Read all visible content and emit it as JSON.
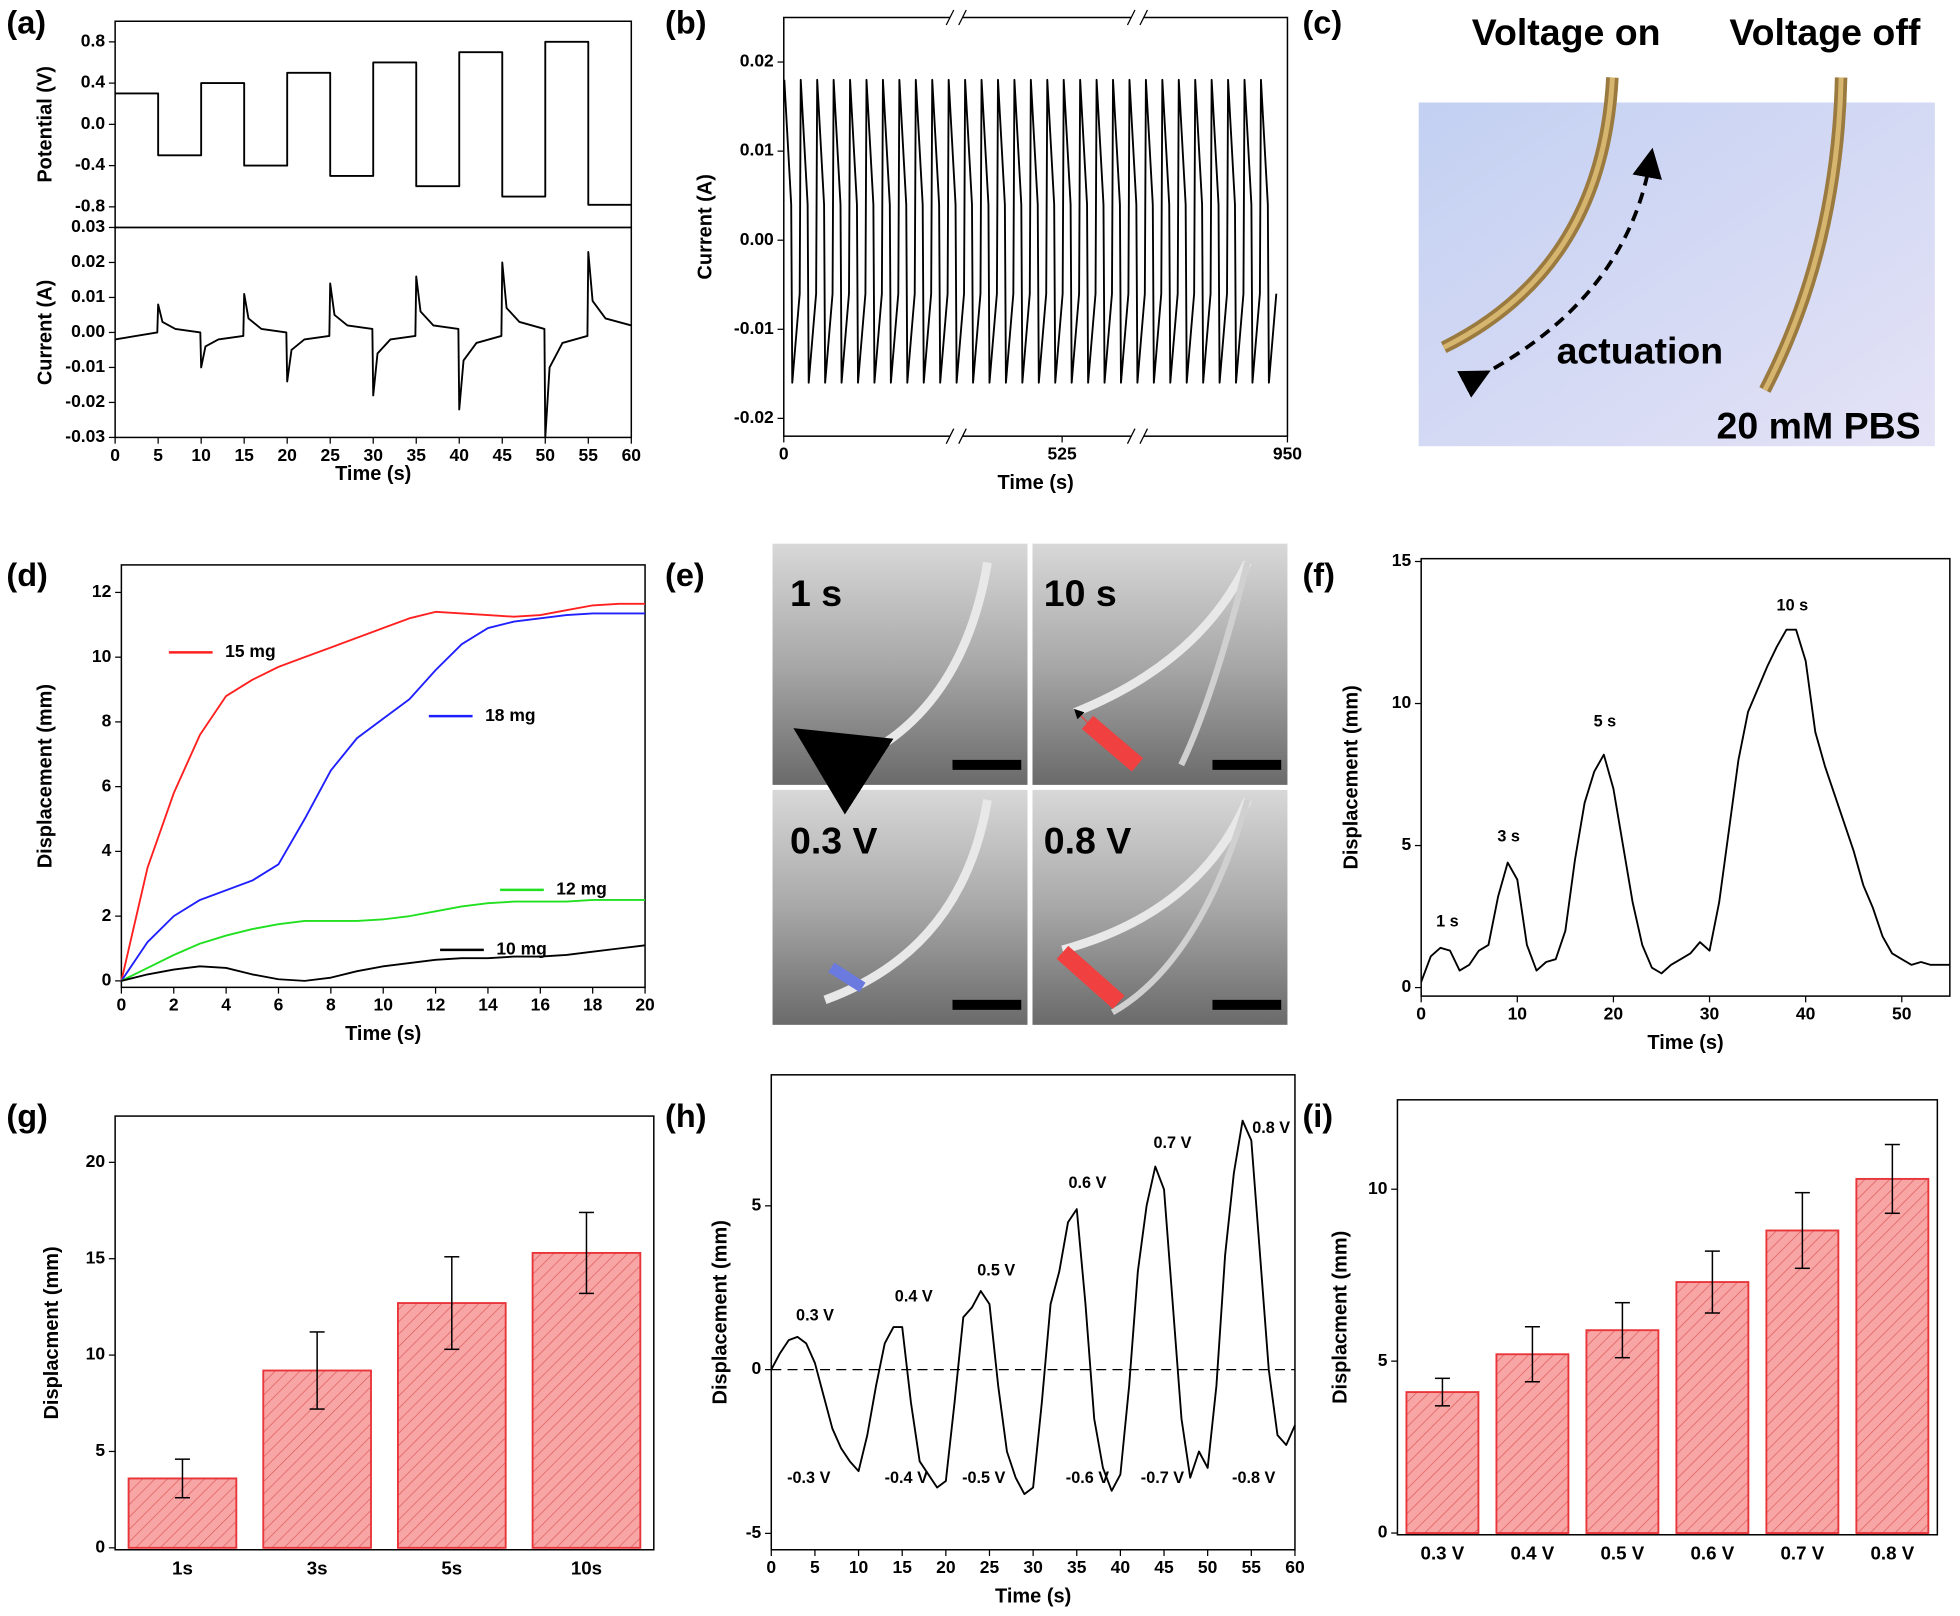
{
  "chart_data": [
    {
      "type": "line",
      "panel": "(a)",
      "ylabel": "Potential (V)",
      "x": [
        0,
        5,
        5,
        10,
        10,
        15,
        15,
        20,
        20,
        25,
        25,
        30,
        30,
        35,
        35,
        40,
        40,
        45,
        45,
        50,
        50,
        55,
        55,
        60
      ],
      "xlim": [
        0,
        60
      ],
      "ylim": [
        -1,
        1
      ],
      "yticks": [
        -0.8,
        -0.4,
        {
          "value": 0,
          "label": "0.0"
        },
        0.4,
        0.8
      ],
      "series": [
        {
          "color": "#000000",
          "values": [
            0.3,
            0.3,
            -0.3,
            -0.3,
            0.4,
            0.4,
            -0.4,
            -0.4,
            0.5,
            0.5,
            -0.5,
            -0.5,
            0.6,
            0.6,
            -0.6,
            -0.6,
            0.7,
            0.7,
            -0.7,
            -0.7,
            0.8,
            0.8,
            -0.78,
            -0.78
          ]
        }
      ]
    },
    {
      "type": "line",
      "ylabel": "Current (A)",
      "xlabel": "Time (s)",
      "x": [
        0,
        4.9,
        5,
        5.5,
        7,
        9.9,
        10,
        10.5,
        12,
        14.9,
        15,
        15.5,
        17,
        19.9,
        20,
        20.5,
        22,
        24.9,
        25,
        25.5,
        27,
        29.9,
        30,
        30.5,
        32,
        34.9,
        35,
        35.5,
        37,
        39.9,
        40,
        40.5,
        42,
        44.9,
        45,
        45.5,
        47,
        49.9,
        50,
        50.5,
        52,
        54.9,
        55,
        55.5,
        57,
        60
      ],
      "xlim": [
        0,
        60
      ],
      "xticks": [
        0,
        5,
        10,
        15,
        20,
        25,
        30,
        35,
        40,
        45,
        50,
        55,
        60
      ],
      "ylim": [
        -0.03,
        0.03
      ],
      "yticks": [
        -0.03,
        -0.02,
        -0.01,
        {
          "value": 0,
          "label": "0.00"
        },
        0.01,
        0.02,
        0.03
      ],
      "series": [
        {
          "color": "#000000",
          "values": [
            -0.002,
            0,
            0.008,
            0.003,
            0.001,
            0,
            -0.01,
            -0.004,
            -0.002,
            -0.001,
            0.011,
            0.004,
            0.001,
            0,
            -0.014,
            -0.005,
            -0.002,
            -0.001,
            0.014,
            0.005,
            0.002,
            0.001,
            -0.018,
            -0.006,
            -0.002,
            -0.001,
            0.016,
            0.006,
            0.002,
            0.001,
            -0.022,
            -0.008,
            -0.003,
            -0.001,
            0.02,
            0.007,
            0.003,
            0.001,
            -0.03,
            -0.01,
            -0.003,
            -0.001,
            0.023,
            0.009,
            0.004,
            0.002
          ]
        }
      ]
    },
    {
      "type": "line",
      "panel": "(b)",
      "ylabel": "Current (A)",
      "xlabel": "Time (s)",
      "x": [
        1,
        14,
        16,
        30,
        32,
        45,
        47,
        61,
        63,
        76,
        78,
        92,
        94,
        107,
        109,
        123,
        125,
        138,
        140,
        154,
        156,
        169,
        171,
        185,
        187,
        200,
        202,
        216,
        218,
        231,
        233,
        247,
        249,
        262,
        264,
        278,
        280,
        293,
        295,
        309,
        311,
        324,
        326,
        340,
        342,
        355,
        357,
        371,
        373,
        386,
        388,
        402,
        404,
        417,
        419,
        433,
        435,
        448,
        450,
        464,
        466,
        479,
        481,
        495,
        497,
        510,
        512,
        526,
        528,
        541,
        543,
        557,
        559,
        572,
        574,
        588,
        590,
        603,
        605,
        619,
        621,
        634,
        636,
        650,
        652,
        665,
        667,
        681,
        683,
        696,
        698,
        712,
        714,
        727,
        729,
        743,
        745,
        758,
        760,
        774,
        776,
        789,
        791,
        805,
        807,
        820,
        822,
        836,
        838,
        851,
        853,
        867,
        869,
        882,
        884,
        898,
        900,
        913,
        915,
        929
      ],
      "xlim": [
        0,
        950
      ],
      "xticks": [
        0,
        525,
        950
      ],
      "ylim": [
        -0.022,
        0.025
      ],
      "yticks": [
        -0.02,
        -0.01,
        {
          "value": 0,
          "label": "0.00"
        },
        0.01,
        0.02
      ],
      "series": [
        {
          "color": "#000000",
          "values": [
            0.018,
            0.004,
            -0.016,
            -0.006,
            0.018,
            0.004,
            -0.016,
            -0.006,
            0.018,
            0.004,
            -0.016,
            -0.006,
            0.018,
            0.004,
            -0.016,
            -0.006,
            0.018,
            0.004,
            -0.016,
            -0.006,
            0.018,
            0.004,
            -0.016,
            -0.006,
            0.018,
            0.004,
            -0.016,
            -0.006,
            0.018,
            0.004,
            -0.016,
            -0.006,
            0.018,
            0.004,
            -0.016,
            -0.006,
            0.018,
            0.004,
            -0.016,
            -0.006,
            0.018,
            0.004,
            -0.016,
            -0.006,
            0.018,
            0.004,
            -0.016,
            -0.006,
            0.018,
            0.004,
            -0.016,
            -0.006,
            0.018,
            0.004,
            -0.016,
            -0.006,
            0.018,
            0.004,
            -0.016,
            -0.006,
            0.018,
            0.004,
            -0.016,
            -0.006,
            0.018,
            0.004,
            -0.016,
            -0.006,
            0.018,
            0.004,
            -0.016,
            -0.006,
            0.018,
            0.004,
            -0.016,
            -0.006,
            0.018,
            0.004,
            -0.016,
            -0.006,
            0.018,
            0.004,
            -0.016,
            -0.006,
            0.018,
            0.004,
            -0.016,
            -0.006,
            0.018,
            0.004,
            -0.016,
            -0.006,
            0.018,
            0.004,
            -0.016,
            -0.006,
            0.018,
            0.004,
            -0.016,
            -0.006,
            0.018,
            0.004,
            -0.016,
            -0.006,
            0.018,
            0.004,
            -0.016,
            -0.006,
            0.018,
            0.004,
            -0.016,
            -0.006,
            0.018,
            0.004,
            -0.016,
            -0.006,
            0.018,
            0.004,
            -0.016,
            -0.006
          ]
        }
      ]
    },
    {
      "type": "line",
      "panel": "(d)",
      "ylabel": "Displacement (mm)",
      "xlabel": "Time (s)",
      "x": [
        0,
        1,
        2,
        3,
        4,
        5,
        6,
        7,
        8,
        9,
        10,
        11,
        12,
        13,
        14,
        15,
        16,
        17,
        18,
        19,
        20
      ],
      "xlim": [
        0,
        20
      ],
      "xticks": [
        0,
        2,
        4,
        6,
        8,
        10,
        12,
        14,
        16,
        18,
        20
      ],
      "ylim": [
        -0.2,
        12.85
      ],
      "yticks": [
        0,
        2,
        4,
        6,
        8,
        10,
        12
      ],
      "series": [
        {
          "name": "15 mg",
          "color": "#ff2020",
          "values": [
            0,
            3.5,
            5.8,
            7.6,
            8.8,
            9.3,
            9.7,
            10.0,
            10.3,
            10.6,
            10.9,
            11.2,
            11.4,
            11.35,
            11.3,
            11.25,
            11.3,
            11.45,
            11.6,
            11.65,
            11.65
          ]
        },
        {
          "name": "18 mg",
          "color": "#2020ff",
          "values": [
            0,
            1.2,
            2.0,
            2.5,
            2.8,
            3.1,
            3.6,
            5.0,
            6.5,
            7.5,
            8.1,
            8.7,
            9.6,
            10.4,
            10.9,
            11.1,
            11.2,
            11.3,
            11.35,
            11.35,
            11.35
          ]
        },
        {
          "name": "12 mg",
          "color": "#20e020",
          "values": [
            0,
            0.4,
            0.8,
            1.15,
            1.4,
            1.6,
            1.75,
            1.85,
            1.85,
            1.85,
            1.9,
            2.0,
            2.15,
            2.3,
            2.4,
            2.45,
            2.45,
            2.45,
            2.5,
            2.5,
            2.5
          ]
        },
        {
          "name": "10 mg",
          "color": "#000000",
          "values": [
            0,
            0.2,
            0.35,
            0.45,
            0.4,
            0.2,
            0.05,
            0.0,
            0.1,
            0.3,
            0.45,
            0.55,
            0.65,
            0.7,
            0.7,
            0.75,
            0.75,
            0.8,
            0.9,
            1.0,
            1.1
          ]
        }
      ]
    },
    {
      "type": "line",
      "panel": "(f)",
      "ylabel": "Displacement (mm)",
      "xlabel": "Time (s)",
      "x": [
        0,
        1,
        2,
        3,
        4,
        5,
        6,
        7,
        8,
        9,
        10,
        11,
        12,
        13,
        14,
        15,
        16,
        17,
        18,
        19,
        20,
        21,
        22,
        23,
        24,
        25,
        26,
        27,
        28,
        29,
        30,
        31,
        32,
        33,
        34,
        35,
        36,
        37,
        38,
        39,
        40,
        41,
        42,
        43,
        44,
        45,
        46,
        47,
        48,
        49,
        50,
        51,
        52,
        53,
        54,
        55
      ],
      "xlim": [
        0,
        55
      ],
      "xticks": [
        0,
        10,
        20,
        30,
        40,
        50
      ],
      "ylim": [
        -0.3,
        15.1
      ],
      "yticks": [
        0,
        5,
        10,
        15
      ],
      "annotations": [
        "1 s",
        "3 s",
        "5 s",
        "10 s"
      ],
      "series": [
        {
          "color": "#000000",
          "values": [
            0.2,
            1.1,
            1.4,
            1.3,
            0.6,
            0.8,
            1.3,
            1.5,
            3.2,
            4.4,
            3.8,
            1.5,
            0.6,
            0.9,
            1.0,
            2.0,
            4.5,
            6.5,
            7.6,
            8.2,
            7.0,
            5.0,
            3.0,
            1.5,
            0.7,
            0.5,
            0.8,
            1.0,
            1.2,
            1.6,
            1.3,
            3.0,
            5.5,
            8.0,
            9.7,
            10.5,
            11.3,
            12.0,
            12.6,
            12.6,
            11.5,
            9.0,
            7.8,
            6.8,
            5.8,
            4.8,
            3.6,
            2.8,
            1.8,
            1.2,
            1.0,
            0.8,
            0.9,
            0.8,
            0.8,
            0.8
          ]
        }
      ]
    },
    {
      "type": "bar",
      "panel": "(g)",
      "ylabel": "Displacment (mm)",
      "categories": [
        "1s",
        "3s",
        "5s",
        "10s"
      ],
      "values": [
        3.6,
        9.2,
        12.7,
        15.3
      ],
      "errors": [
        1.0,
        2.0,
        2.4,
        2.1
      ],
      "color": "#e8353a",
      "ylim": [
        -0.1,
        22.4
      ],
      "yticks": [
        0,
        5,
        10,
        15,
        20
      ]
    },
    {
      "type": "line",
      "panel": "(h)",
      "ylabel": "Displacement (mm)",
      "xlabel": "Time (s)",
      "zero_line": true,
      "x": [
        0,
        1,
        2,
        3,
        4,
        5,
        6,
        7,
        8,
        9,
        10,
        11,
        12,
        13,
        14,
        15,
        16,
        17,
        18,
        19,
        20,
        21,
        22,
        23,
        24,
        25,
        26,
        27,
        28,
        29,
        30,
        31,
        32,
        33,
        34,
        35,
        36,
        37,
        38,
        39,
        40,
        41,
        42,
        43,
        44,
        45,
        46,
        47,
        48,
        49,
        50,
        51,
        52,
        53,
        54,
        55,
        56,
        57,
        58,
        59,
        60
      ],
      "xlim": [
        0,
        60
      ],
      "xticks": [
        0,
        5,
        10,
        15,
        20,
        25,
        30,
        35,
        40,
        45,
        50,
        55,
        60
      ],
      "ylim": [
        -5.5,
        9.0
      ],
      "yticks": [
        -5,
        0,
        5
      ],
      "annotations": [
        "0.3 V",
        "-0.3 V",
        "0.4 V",
        "-0.4 V",
        "0.5 V",
        "-0.5 V",
        "0.6 V",
        "-0.6 V",
        "0.7 V",
        "-0.7 V",
        "0.8 V",
        "-0.8 V"
      ],
      "series": [
        {
          "color": "#000000",
          "values": [
            0,
            0.5,
            0.9,
            1.0,
            0.8,
            0.2,
            -0.8,
            -1.8,
            -2.4,
            -2.8,
            -3.1,
            -2.0,
            -0.5,
            0.8,
            1.3,
            1.3,
            -1.0,
            -2.8,
            -3.2,
            -3.6,
            -3.4,
            -1.0,
            1.6,
            1.9,
            2.4,
            2.0,
            -0.5,
            -2.5,
            -3.3,
            -3.8,
            -3.6,
            -1.0,
            2.0,
            3.0,
            4.5,
            4.9,
            2.0,
            -1.5,
            -3.0,
            -3.7,
            -3.2,
            -0.5,
            3.0,
            5.0,
            6.2,
            5.5,
            2.0,
            -1.5,
            -3.3,
            -2.5,
            -3.0,
            -0.5,
            3.5,
            6.0,
            7.6,
            7.0,
            3.5,
            0.0,
            -2.0,
            -2.3,
            -1.7
          ]
        }
      ]
    },
    {
      "type": "bar",
      "panel": "(i)",
      "ylabel": "Displacment (mm)",
      "categories": [
        "0.3 V",
        "0.4 V",
        "0.5 V",
        "0.6 V",
        "0.7 V",
        "0.8 V"
      ],
      "values": [
        4.1,
        5.2,
        5.9,
        7.3,
        8.8,
        10.3
      ],
      "errors": [
        0.4,
        0.8,
        0.8,
        0.9,
        1.1,
        1.0
      ],
      "color": "#e8353a",
      "ylim": [
        -0.05,
        12.6
      ],
      "yticks": [
        0,
        5,
        10
      ]
    }
  ],
  "panels": [
    {
      "label": "(c)",
      "texts": [
        "Voltage on",
        "Voltage off",
        "actuation",
        "20 mM PBS"
      ]
    },
    {
      "label": "(e)",
      "texts": [
        "1 s",
        "10 s",
        "0.3 V",
        "0.8 V"
      ]
    }
  ]
}
